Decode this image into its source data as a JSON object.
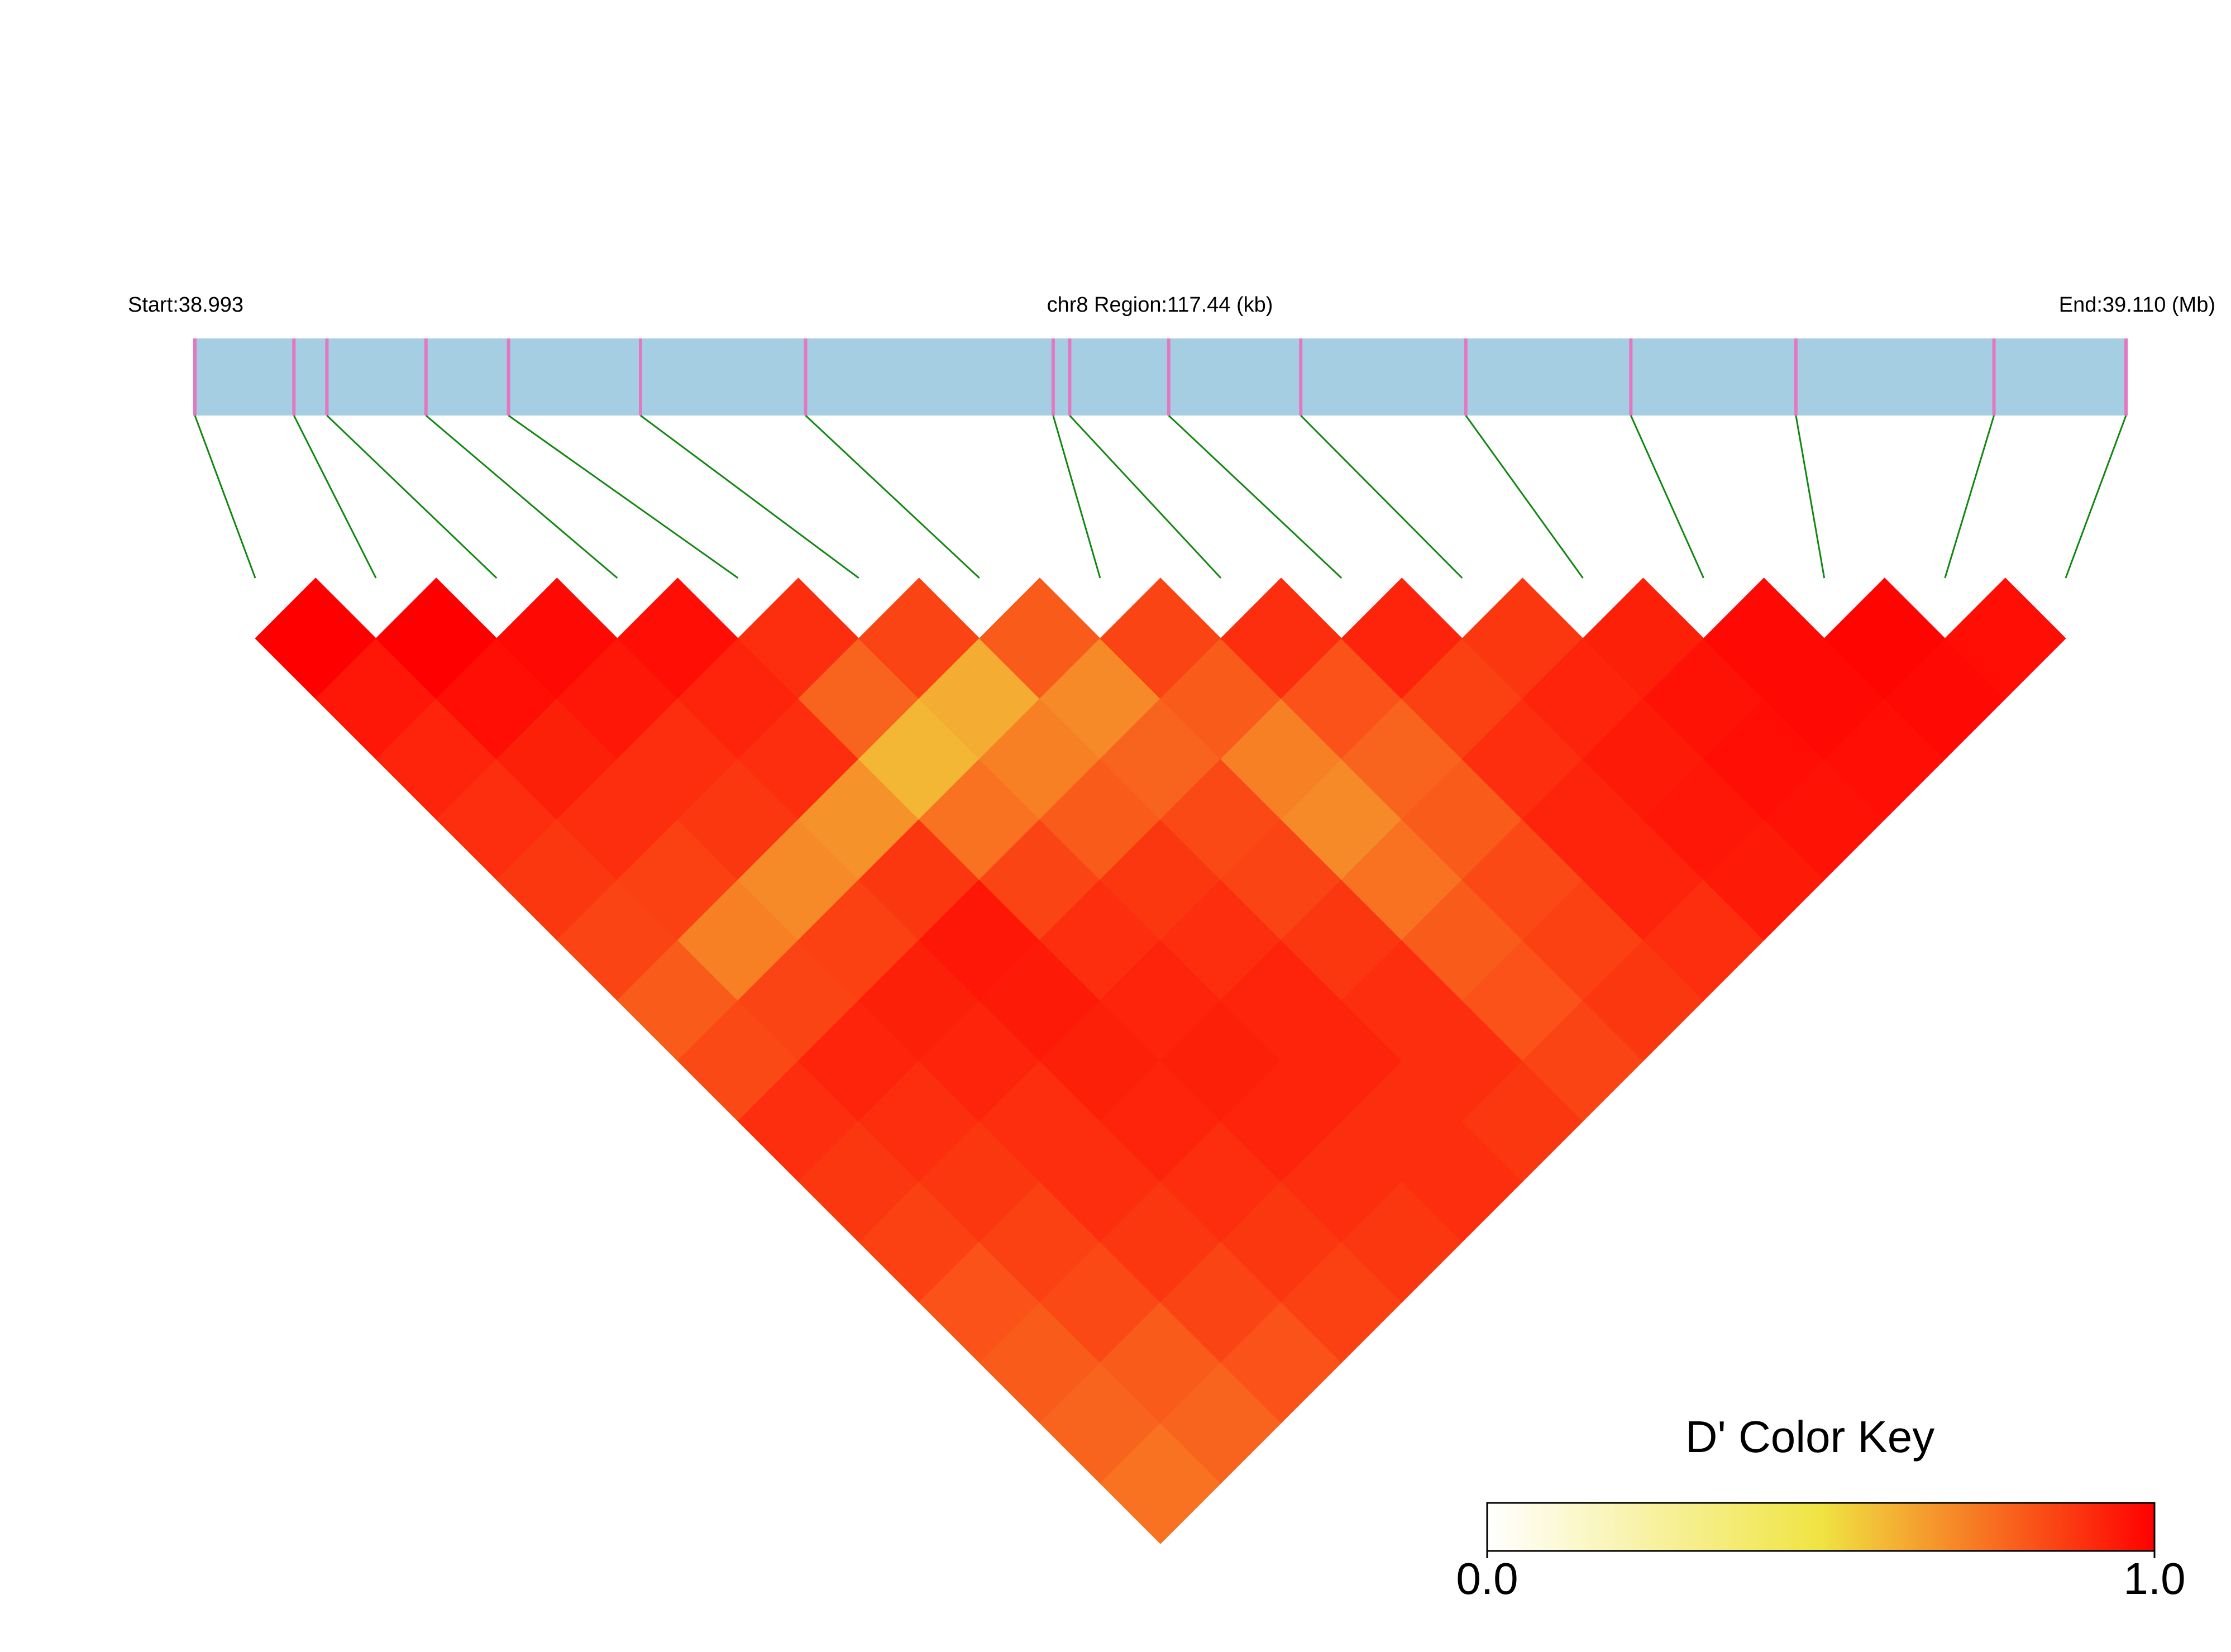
{
  "chart_data": {
    "type": "ld-heatmap",
    "start_label": "Start:38.993",
    "region_label": "chr8 Region:117.44 (kb)",
    "end_label": "End:39.110 (Mb)",
    "xlim": [
      38.993,
      39.11
    ],
    "snp_positions": [
      38.993,
      38.999,
      39.001,
      39.007,
      39.012,
      39.02,
      39.03,
      39.045,
      39.046,
      39.052,
      39.06,
      39.07,
      39.08,
      39.09,
      39.102,
      39.11
    ],
    "dprime": [
      [
        1.0,
        0.95,
        0.92,
        0.9,
        0.88,
        0.85,
        0.8,
        0.84,
        0.9,
        0.88,
        0.86,
        0.82,
        0.8,
        0.78,
        0.75
      ],
      [
        1.0,
        0.97,
        0.93,
        0.9,
        0.86,
        0.72,
        0.85,
        0.92,
        0.9,
        0.88,
        0.86,
        0.84,
        0.8,
        0.78
      ],
      [
        0.98,
        0.95,
        0.9,
        0.88,
        0.7,
        0.86,
        0.93,
        0.92,
        0.9,
        0.9,
        0.88,
        0.85,
        0.82
      ],
      [
        0.97,
        0.92,
        0.9,
        0.68,
        0.88,
        0.95,
        0.94,
        0.93,
        0.92,
        0.9,
        0.88,
        0.86
      ],
      [
        0.9,
        0.78,
        0.6,
        0.75,
        0.85,
        0.9,
        0.92,
        0.93,
        0.92,
        0.9,
        0.88
      ],
      [
        0.85,
        0.62,
        0.72,
        0.8,
        0.88,
        0.9,
        0.92,
        0.92,
        0.9,
        0.9
      ],
      [
        0.8,
        0.7,
        0.78,
        0.84,
        0.85,
        0.88,
        0.9,
        0.9,
        0.88
      ],
      [
        0.85,
        0.8,
        0.72,
        0.7,
        0.75,
        0.8,
        0.82,
        0.85
      ],
      [
        0.9,
        0.82,
        0.78,
        0.8,
        0.84,
        0.86,
        0.88
      ],
      [
        0.92,
        0.86,
        0.9,
        0.92,
        0.92,
        0.9
      ],
      [
        0.88,
        0.92,
        0.94,
        0.95,
        0.94
      ],
      [
        0.93,
        0.96,
        0.97,
        0.96
      ],
      [
        0.98,
        0.98,
        0.97
      ],
      [
        0.99,
        0.98
      ],
      [
        0.97
      ]
    ],
    "colorkey_title": "D' Color Key",
    "colorkey_colors": [
      "#ffffff",
      "#f0e442",
      "#ff0000"
    ],
    "colorkey_lim": [
      0,
      1
    ],
    "colorkey_ticks": [
      {
        "value": 0,
        "label": "0.0"
      },
      {
        "value": 1,
        "label": "1.0"
      }
    ]
  }
}
